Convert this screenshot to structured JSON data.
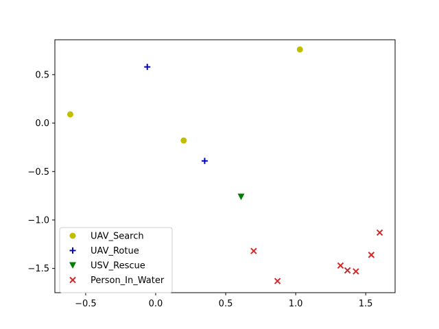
{
  "chart_data": {
    "type": "scatter",
    "title": "",
    "xlabel": "",
    "ylabel": "",
    "xlim": [
      -0.72,
      1.71
    ],
    "ylim": [
      -1.75,
      0.86
    ],
    "xticks": [
      -0.5,
      0.0,
      0.5,
      1.0,
      1.5
    ],
    "xtick_labels": [
      "−0.5",
      "0.0",
      "0.5",
      "1.0",
      "1.5"
    ],
    "yticks": [
      0.5,
      0.0,
      -0.5,
      -1.0,
      -1.5
    ],
    "ytick_labels": [
      "0.5",
      "0.0",
      "−0.5",
      "−1.0",
      "−1.5"
    ],
    "grid": false,
    "legend_position": "lower-left",
    "series": [
      {
        "name": "UAV_Search",
        "marker": "circle",
        "color": "#bfbf00",
        "points": [
          [
            -0.61,
            0.09
          ],
          [
            0.2,
            -0.18
          ],
          [
            1.03,
            0.76
          ]
        ]
      },
      {
        "name": "UAV_Rotue",
        "marker": "plus",
        "color": "#0000bf",
        "points": [
          [
            -0.06,
            0.58
          ],
          [
            0.35,
            -0.39
          ]
        ]
      },
      {
        "name": "USV_Rescue",
        "marker": "triangle-down",
        "color": "#008000",
        "points": [
          [
            0.61,
            -0.76
          ]
        ]
      },
      {
        "name": "Person_In_Water",
        "marker": "x",
        "color": "#d62728",
        "points": [
          [
            0.7,
            -1.32
          ],
          [
            0.87,
            -1.63
          ],
          [
            1.32,
            -1.47
          ],
          [
            1.37,
            -1.52
          ],
          [
            1.43,
            -1.53
          ],
          [
            1.54,
            -1.36
          ],
          [
            1.6,
            -1.13
          ]
        ]
      }
    ]
  }
}
